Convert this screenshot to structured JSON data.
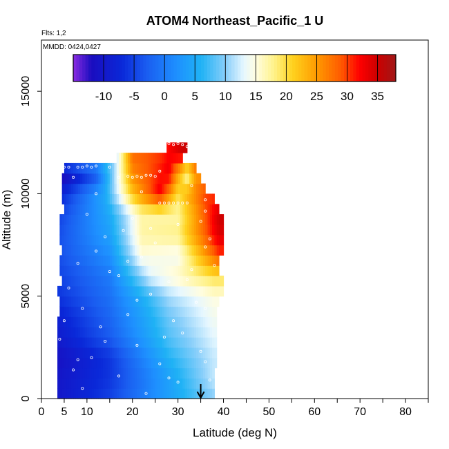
{
  "chart_data": {
    "type": "heatmap",
    "title": "ATOM4 Northeast_Pacific_1 U",
    "flights_label": "Flts: 1,2",
    "mmdd_label": "MMDD: 0424,0427",
    "xlabel": "Latitude (deg N)",
    "ylabel": "Altitude (m)",
    "xlim": [
      0,
      85
    ],
    "ylim": [
      0,
      17500
    ],
    "x_ticks": [
      0,
      5,
      10,
      20,
      30,
      40,
      50,
      60,
      70,
      80
    ],
    "x_tick_labels": [
      "0",
      "5",
      "10",
      "20",
      "30",
      "40",
      "50",
      "60",
      "70",
      "80"
    ],
    "x_minor_ticks": [
      15,
      25,
      35,
      45,
      55,
      65,
      75,
      85
    ],
    "y_ticks": [
      0,
      5000,
      10000,
      15000
    ],
    "y_tick_labels": [
      "0",
      "5000",
      "10000",
      "15000"
    ],
    "colorbar": {
      "vmin": -15,
      "vmax": 38,
      "ticks": [
        -10,
        -5,
        0,
        5,
        10,
        15,
        20,
        25,
        30,
        35
      ],
      "tick_labels": [
        "-10",
        "-5",
        "0",
        "5",
        "10",
        "15",
        "20",
        "25",
        "30",
        "35"
      ],
      "stops": [
        {
          "value": -15,
          "color": "#8a2be2"
        },
        {
          "value": -12,
          "color": "#1a0dbf"
        },
        {
          "value": -7,
          "color": "#0a28d8"
        },
        {
          "value": -3,
          "color": "#1a5cf0"
        },
        {
          "value": 2,
          "color": "#1e90ff"
        },
        {
          "value": 6,
          "color": "#1fb2f5"
        },
        {
          "value": 10,
          "color": "#87cefa"
        },
        {
          "value": 13,
          "color": "#e6f7ff"
        },
        {
          "value": 15,
          "color": "#fffde0"
        },
        {
          "value": 18,
          "color": "#fff28a"
        },
        {
          "value": 21,
          "color": "#ffd21f"
        },
        {
          "value": 25,
          "color": "#ff9a00"
        },
        {
          "value": 29,
          "color": "#ff5a00"
        },
        {
          "value": 32,
          "color": "#ff0000"
        },
        {
          "value": 35,
          "color": "#cc0000"
        },
        {
          "value": 38,
          "color": "#a01818"
        }
      ]
    },
    "marker_arrow_latitude": 35,
    "field": {
      "altitude_levels": [
        0,
        500,
        1000,
        1500,
        2000,
        2500,
        3000,
        3500,
        4000,
        4500,
        5000,
        5500,
        6000,
        6500,
        7000,
        7500,
        8000,
        8500,
        9000,
        9500,
        10000,
        10500,
        11000,
        11500,
        12000,
        12500
      ],
      "lat_min": [
        3.5,
        3.5,
        3.5,
        3.5,
        3.5,
        3.5,
        3.5,
        3.5,
        4,
        4,
        3.5,
        4.5,
        4,
        4,
        4.5,
        4,
        4,
        4,
        5,
        4.5,
        4.5,
        4.5,
        5,
        16.5,
        27.5
      ],
      "lat_max": [
        38,
        38,
        38,
        38.5,
        38.5,
        38.5,
        38.5,
        38.5,
        38.5,
        39,
        40,
        40,
        39,
        39,
        40,
        40,
        40,
        40,
        39,
        38,
        36,
        35,
        34,
        31,
        32
      ],
      "u_at_lat": [
        {
          "alt": 0,
          "pts": [
            [
              4,
              -10
            ],
            [
              15,
              -5
            ],
            [
              25,
              2
            ],
            [
              38,
              10
            ]
          ]
        },
        {
          "alt": 1000,
          "pts": [
            [
              4,
              -10
            ],
            [
              15,
              -6
            ],
            [
              28,
              4
            ],
            [
              38,
              12
            ]
          ]
        },
        {
          "alt": 2000,
          "pts": [
            [
              4,
              -11
            ],
            [
              15,
              -6
            ],
            [
              28,
              6
            ],
            [
              38,
              12
            ]
          ]
        },
        {
          "alt": 3000,
          "pts": [
            [
              4,
              -9
            ],
            [
              15,
              -3
            ],
            [
              28,
              8
            ],
            [
              38,
              13
            ]
          ]
        },
        {
          "alt": 4000,
          "pts": [
            [
              4,
              -8
            ],
            [
              15,
              -2
            ],
            [
              28,
              9
            ],
            [
              38,
              14
            ]
          ]
        },
        {
          "alt": 5000,
          "pts": [
            [
              4,
              -6
            ],
            [
              15,
              -1
            ],
            [
              28,
              11
            ],
            [
              38,
              15
            ]
          ]
        },
        {
          "alt": 6000,
          "pts": [
            [
              4,
              -5
            ],
            [
              15,
              0
            ],
            [
              24,
              13
            ],
            [
              38,
              20
            ]
          ]
        },
        {
          "alt": 7000,
          "pts": [
            [
              4,
              -4
            ],
            [
              15,
              2
            ],
            [
              22,
              15
            ],
            [
              30,
              14
            ],
            [
              39,
              30
            ]
          ]
        },
        {
          "alt": 8000,
          "pts": [
            [
              4,
              -4
            ],
            [
              15,
              4
            ],
            [
              22,
              17
            ],
            [
              30,
              18
            ],
            [
              39,
              34
            ]
          ]
        },
        {
          "alt": 9000,
          "pts": [
            [
              4,
              -5
            ],
            [
              15,
              5
            ],
            [
              22,
              17
            ],
            [
              30,
              17
            ],
            [
              39,
              35
            ]
          ]
        },
        {
          "alt": 10000,
          "pts": [
            [
              4,
              -8
            ],
            [
              14,
              5
            ],
            [
              20,
              22
            ],
            [
              26,
              33
            ],
            [
              30,
              20
            ],
            [
              36,
              30
            ]
          ]
        },
        {
          "alt": 11000,
          "pts": [
            [
              4,
              -14
            ],
            [
              12,
              -4
            ],
            [
              20,
              26
            ],
            [
              28,
              33
            ],
            [
              32,
              16
            ],
            [
              34,
              25
            ]
          ]
        },
        {
          "alt": 12000,
          "pts": [
            [
              16,
              10
            ],
            [
              20,
              28
            ],
            [
              26,
              30
            ],
            [
              31,
              35
            ]
          ]
        }
      ]
    },
    "sample_points": [
      [
        5,
        11300
      ],
      [
        6,
        11300
      ],
      [
        8,
        11300
      ],
      [
        9,
        11300
      ],
      [
        10,
        11350
      ],
      [
        11,
        11300
      ],
      [
        12,
        11350
      ],
      [
        15,
        11300
      ],
      [
        17,
        10800
      ],
      [
        19,
        10850
      ],
      [
        20,
        10800
      ],
      [
        21,
        10850
      ],
      [
        22,
        10800
      ],
      [
        23,
        10900
      ],
      [
        24,
        10900
      ],
      [
        25,
        10850
      ],
      [
        26,
        11100
      ],
      [
        27,
        12400
      ],
      [
        28,
        12450
      ],
      [
        29,
        12400
      ],
      [
        30,
        12450
      ],
      [
        31,
        12400
      ],
      [
        32,
        12300
      ],
      [
        26,
        9550
      ],
      [
        27,
        9550
      ],
      [
        28,
        9550
      ],
      [
        29,
        9550
      ],
      [
        30,
        9550
      ],
      [
        31,
        9550
      ],
      [
        32,
        9550
      ],
      [
        7,
        10800
      ],
      [
        12,
        10000
      ],
      [
        22,
        10100
      ],
      [
        33,
        10400
      ],
      [
        36,
        9700
      ],
      [
        36,
        9150
      ],
      [
        35,
        8650
      ],
      [
        37,
        7800
      ],
      [
        36,
        7400
      ],
      [
        38,
        6500
      ],
      [
        10,
        9000
      ],
      [
        20,
        8800
      ],
      [
        30,
        8500
      ],
      [
        18,
        8200
      ],
      [
        14,
        7900
      ],
      [
        25,
        7600
      ],
      [
        12,
        7200
      ],
      [
        22,
        6900
      ],
      [
        8,
        6600
      ],
      [
        33,
        6300
      ],
      [
        17,
        6000
      ],
      [
        28,
        5700
      ],
      [
        6,
        5400
      ],
      [
        24,
        5100
      ],
      [
        34,
        4700
      ],
      [
        9,
        4400
      ],
      [
        19,
        4100
      ],
      [
        29,
        3800
      ],
      [
        13,
        3500
      ],
      [
        31,
        3200
      ],
      [
        4,
        2900
      ],
      [
        21,
        2600
      ],
      [
        35,
        2300
      ],
      [
        11,
        2000
      ],
      [
        26,
        1700
      ],
      [
        7,
        1400
      ],
      [
        17,
        1100
      ],
      [
        30,
        800
      ],
      [
        9,
        500
      ],
      [
        23,
        250
      ],
      [
        15,
        6200
      ],
      [
        21,
        4800
      ],
      [
        27,
        3000
      ],
      [
        32,
        5800
      ],
      [
        36,
        4400
      ],
      [
        5,
        3800
      ],
      [
        8,
        1900
      ],
      [
        28,
        1000
      ],
      [
        36,
        1800
      ],
      [
        37,
        900
      ],
      [
        14,
        2800
      ],
      [
        19,
        6700
      ],
      [
        24,
        8300
      ]
    ]
  }
}
